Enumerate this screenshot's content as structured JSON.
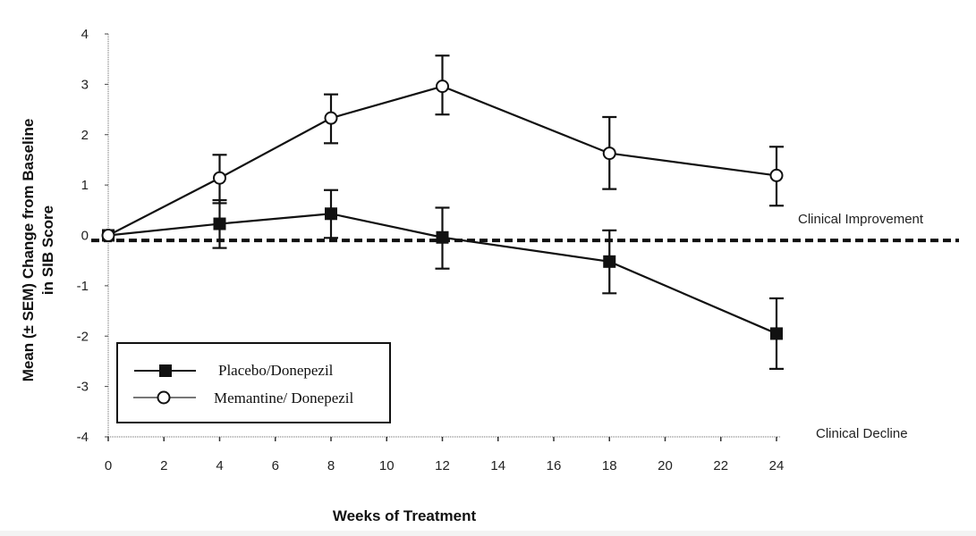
{
  "chart_data": {
    "type": "line",
    "title": "",
    "xlabel": "Weeks of Treatment",
    "ylabel_lines": [
      "Mean (± SEM) Change from Baseline",
      "in SIB Score"
    ],
    "xlim": [
      0,
      24
    ],
    "ylim": [
      -4,
      4
    ],
    "x_ticks": [
      0,
      2,
      4,
      6,
      8,
      10,
      12,
      14,
      16,
      18,
      20,
      22,
      24
    ],
    "x_tick_labels": [
      "0",
      "2",
      "4",
      "6",
      "8",
      "10",
      "12",
      "14",
      "16",
      "18",
      "20",
      "22",
      "24"
    ],
    "y_ticks": [
      4,
      3,
      2,
      1,
      0,
      -1,
      -2,
      -3,
      -4
    ],
    "y_tick_labels": [
      "4",
      "3",
      "2",
      "1",
      "0",
      "-1",
      "-2",
      "-3",
      "-4"
    ],
    "grid": false,
    "x": [
      0,
      4,
      8,
      12,
      18,
      24
    ],
    "series": [
      {
        "name": "Placebo/Donepezil",
        "marker": "filled-square",
        "color": "#111111",
        "values": [
          0,
          0.23,
          0.43,
          -0.04,
          -0.52,
          -1.95
        ],
        "error_upper": [
          0,
          0.7,
          0.9,
          0.55,
          0.1,
          -1.25
        ],
        "error_lower": [
          0,
          -0.25,
          -0.05,
          -0.66,
          -1.15,
          -2.65
        ]
      },
      {
        "name": "Memantine/ Donepezil",
        "marker": "open-circle",
        "color": "#111111",
        "values": [
          0,
          1.14,
          2.33,
          2.96,
          1.63,
          1.19
        ],
        "error_upper": [
          0,
          1.6,
          2.8,
          3.57,
          2.35,
          1.76
        ],
        "error_lower": [
          0,
          0.64,
          1.83,
          2.4,
          0.92,
          0.59
        ]
      }
    ],
    "reference_line": {
      "y": -0.1,
      "style": "dashed"
    },
    "annotations": [
      {
        "text": "Clinical Improvement",
        "position": "right, above reference line"
      },
      {
        "text": "Clinical Decline",
        "position": "right, bottom"
      }
    ],
    "legend": {
      "position": "bottom-left",
      "entries": [
        "Placebo/Donepezil",
        "Memantine/ Donepezil"
      ]
    }
  }
}
